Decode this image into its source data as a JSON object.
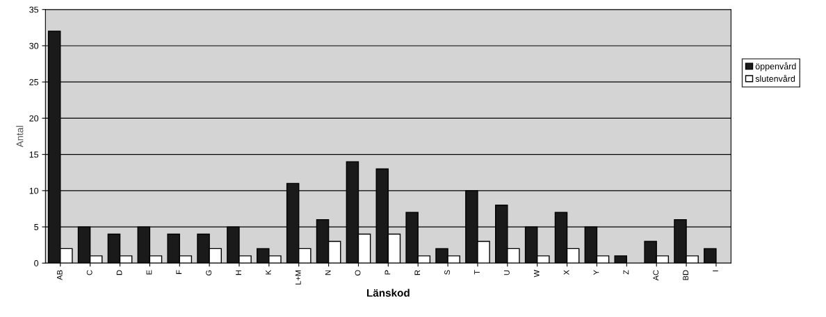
{
  "chart_data": {
    "type": "bar",
    "xlabel": "Länskod",
    "ylabel": "Antal",
    "categories": [
      "AB",
      "C",
      "D",
      "E",
      "F",
      "G",
      "H",
      "K",
      "L+M",
      "N",
      "O",
      "P",
      "R",
      "S",
      "T",
      "U",
      "W",
      "X",
      "Y",
      "Z",
      "AC",
      "BD",
      "I"
    ],
    "series": [
      {
        "name": "öppenvård",
        "color": "#1a1a1a",
        "values": [
          32,
          5,
          4,
          5,
          4,
          4,
          5,
          2,
          11,
          6,
          14,
          13,
          7,
          2,
          10,
          8,
          5,
          7,
          5,
          1,
          3,
          6,
          2
        ]
      },
      {
        "name": "slutenvård",
        "color": "#ffffff",
        "values": [
          2,
          1,
          1,
          1,
          1,
          2,
          1,
          1,
          2,
          3,
          4,
          4,
          1,
          1,
          3,
          2,
          1,
          2,
          1,
          null,
          1,
          1,
          null
        ]
      }
    ],
    "ylim": [
      0,
      35
    ],
    "yticks": [
      0,
      5,
      10,
      15,
      20,
      25,
      30,
      35
    ],
    "grid": "y",
    "legend": "right"
  }
}
